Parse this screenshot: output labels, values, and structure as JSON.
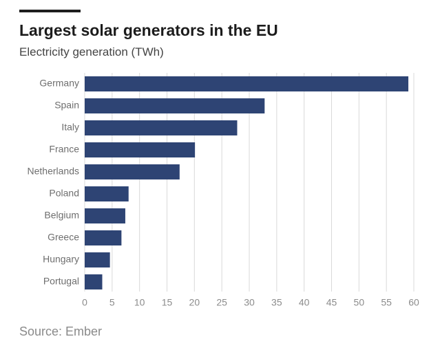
{
  "header": {
    "title": "Largest solar generators in the EU",
    "subtitle": "Electricity generation (TWh)"
  },
  "footer": {
    "source": "Source: Ember"
  },
  "colors": {
    "bar": "#2e4474",
    "grid": "#d9d9d9",
    "tick_label": "#8c8c8c",
    "category_label": "#6e6e6e"
  },
  "chart_data": {
    "type": "bar",
    "orientation": "horizontal",
    "title": "Largest solar generators in the EU",
    "subtitle": "Electricity generation (TWh)",
    "categories": [
      "Germany",
      "Spain",
      "Italy",
      "France",
      "Netherlands",
      "Poland",
      "Belgium",
      "Greece",
      "Hungary",
      "Portugal"
    ],
    "values": [
      59,
      32.8,
      27.8,
      20.1,
      17.3,
      8,
      7.4,
      6.7,
      4.6,
      3.2
    ],
    "xlim": [
      0,
      60
    ],
    "xticks": [
      0,
      5,
      10,
      15,
      20,
      25,
      30,
      35,
      40,
      45,
      50,
      55,
      60
    ],
    "grid": "vertical",
    "legend": "none"
  }
}
